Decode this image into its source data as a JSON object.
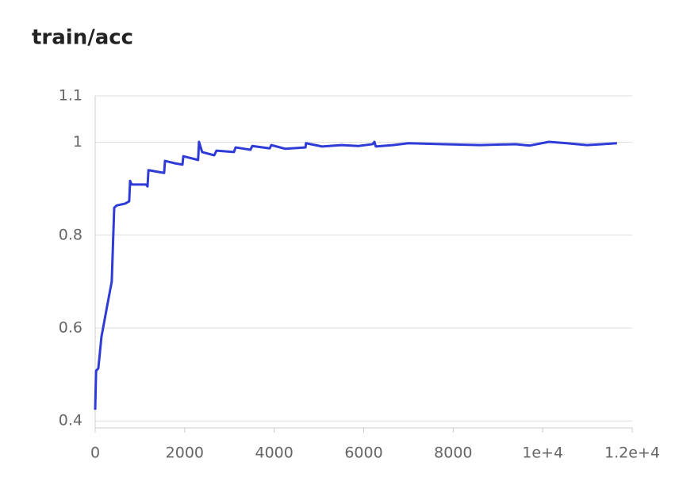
{
  "chart_data": {
    "type": "line",
    "title": "train/acc",
    "x": [
      0,
      20,
      70,
      140,
      270,
      370,
      425,
      480,
      670,
      760,
      780,
      815,
      1135,
      1170,
      1190,
      1540,
      1560,
      1770,
      1950,
      1970,
      2300,
      2320,
      2390,
      2660,
      2710,
      3100,
      3140,
      3470,
      3510,
      3900,
      3935,
      4250,
      4700,
      4710,
      5070,
      5500,
      5880,
      6200,
      6240,
      6270,
      6650,
      7000,
      7800,
      8600,
      9390,
      9710,
      10140,
      10540,
      10990,
      11660
    ],
    "series": [
      {
        "name": "train/acc",
        "color": "#2f3bd6",
        "values": [
          0.424,
          0.508,
          0.513,
          0.581,
          0.649,
          0.7,
          0.859,
          0.864,
          0.868,
          0.873,
          0.917,
          0.909,
          0.909,
          0.905,
          0.94,
          0.934,
          0.96,
          0.955,
          0.952,
          0.97,
          0.962,
          1.001,
          0.979,
          0.972,
          0.982,
          0.979,
          0.989,
          0.984,
          0.992,
          0.987,
          0.994,
          0.986,
          0.989,
          0.998,
          0.991,
          0.994,
          0.992,
          0.996,
          1.001,
          0.991,
          0.994,
          0.998,
          0.996,
          0.994,
          0.996,
          0.993,
          1.001,
          0.998,
          0.994,
          0.998
        ]
      }
    ],
    "xlim": [
      0,
      12000
    ],
    "xticks": [
      0,
      2000,
      4000,
      6000,
      8000,
      {
        "value": 10000,
        "label": "1e+4"
      },
      {
        "value": 12000,
        "label": "1.2e+4"
      }
    ],
    "ylim": [
      0.385,
      1.1
    ],
    "yticks": [
      {
        "value": 0.4,
        "label": "0.4"
      },
      {
        "value": 0.6,
        "label": "0.6"
      },
      {
        "value": 0.8,
        "label": "0.8"
      },
      1,
      1.1
    ],
    "grid": true
  }
}
